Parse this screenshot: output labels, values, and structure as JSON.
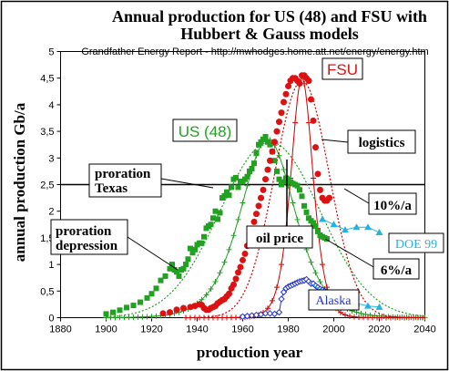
{
  "chart_data": {
    "type": "scatter",
    "title": "Annual production for US (48) and FSU with",
    "subtitle": "Hubbert & Gauss models",
    "source": "Grandfather Energy Report - http://mwhodges.home.att.net/energy/energy.htm",
    "xlabel": "production year",
    "ylabel": "annual production Gb/a",
    "xlim": [
      1880,
      2040
    ],
    "ylim": [
      0,
      5
    ],
    "x_ticks": [
      "1880",
      "1900",
      "1920",
      "1940",
      "1960",
      "1980",
      "2000",
      "2020",
      "2040"
    ],
    "y_ticks": [
      "0",
      "0,5",
      "1",
      "1,5",
      "2",
      "2,5",
      "3",
      "3,5",
      "4",
      "4,5",
      "5"
    ],
    "grid": false,
    "reference_line": 2.5,
    "colors": {
      "us": "#22a022",
      "us_model": "#22a022",
      "fsu": "#dd1111",
      "fsu_model": "#cc0000",
      "alaska": "#2233cc",
      "doe": "#22b4e0",
      "frame": "#000000"
    },
    "series": [
      {
        "name": "US (48)",
        "marker": "square",
        "points": [
          [
            1900,
            0.07
          ],
          [
            1903,
            0.1
          ],
          [
            1906,
            0.14
          ],
          [
            1909,
            0.19
          ],
          [
            1912,
            0.23
          ],
          [
            1915,
            0.29
          ],
          [
            1918,
            0.37
          ],
          [
            1920,
            0.45
          ],
          [
            1922,
            0.55
          ],
          [
            1924,
            0.7
          ],
          [
            1926,
            0.78
          ],
          [
            1928,
            0.92
          ],
          [
            1929,
            1.0
          ],
          [
            1930,
            0.9
          ],
          [
            1931,
            0.86
          ],
          [
            1932,
            0.78
          ],
          [
            1933,
            0.9
          ],
          [
            1934,
            0.92
          ],
          [
            1935,
            1.0
          ],
          [
            1936,
            1.1
          ],
          [
            1937,
            1.3
          ],
          [
            1938,
            1.22
          ],
          [
            1939,
            1.28
          ],
          [
            1940,
            1.37
          ],
          [
            1941,
            1.4
          ],
          [
            1942,
            1.4
          ],
          [
            1943,
            1.52
          ],
          [
            1944,
            1.68
          ],
          [
            1945,
            1.72
          ],
          [
            1946,
            1.75
          ],
          [
            1947,
            1.87
          ],
          [
            1948,
            2.0
          ],
          [
            1949,
            1.85
          ],
          [
            1950,
            1.97
          ],
          [
            1951,
            2.25
          ],
          [
            1952,
            2.29
          ],
          [
            1953,
            2.36
          ],
          [
            1954,
            2.3
          ],
          [
            1955,
            2.45
          ],
          [
            1956,
            2.6
          ],
          [
            1957,
            2.63
          ],
          [
            1958,
            2.45
          ],
          [
            1959,
            2.56
          ],
          [
            1960,
            2.55
          ],
          [
            1961,
            2.6
          ],
          [
            1962,
            2.65
          ],
          [
            1963,
            2.75
          ],
          [
            1964,
            2.8
          ],
          [
            1965,
            2.9
          ],
          [
            1966,
            3.1
          ],
          [
            1967,
            3.25
          ],
          [
            1968,
            3.3
          ],
          [
            1969,
            3.35
          ],
          [
            1970,
            3.4
          ],
          [
            1971,
            3.3
          ],
          [
            1972,
            3.25
          ],
          [
            1973,
            3.12
          ],
          [
            1974,
            2.95
          ],
          [
            1975,
            2.75
          ],
          [
            1976,
            2.6
          ],
          [
            1977,
            2.5
          ],
          [
            1978,
            2.55
          ],
          [
            1979,
            2.62
          ],
          [
            1980,
            2.6
          ],
          [
            1981,
            2.55
          ],
          [
            1982,
            2.52
          ],
          [
            1983,
            2.5
          ],
          [
            1984,
            2.48
          ],
          [
            1985,
            2.4
          ],
          [
            1986,
            2.28
          ],
          [
            1987,
            2.1
          ],
          [
            1988,
            1.98
          ],
          [
            1989,
            1.87
          ],
          [
            1990,
            1.82
          ],
          [
            1991,
            1.78
          ],
          [
            1992,
            1.72
          ],
          [
            1993,
            1.62
          ],
          [
            1994,
            1.55
          ],
          [
            1995,
            1.52
          ],
          [
            1996,
            1.5
          ],
          [
            1997,
            1.48
          ]
        ]
      },
      {
        "name": "FSU",
        "marker": "circle",
        "points": [
          [
            1925,
            0.08
          ],
          [
            1928,
            0.1
          ],
          [
            1931,
            0.15
          ],
          [
            1934,
            0.18
          ],
          [
            1937,
            0.2
          ],
          [
            1939,
            0.22
          ],
          [
            1941,
            0.25
          ],
          [
            1942,
            0.24
          ],
          [
            1943,
            0.18
          ],
          [
            1944,
            0.15
          ],
          [
            1945,
            0.15
          ],
          [
            1946,
            0.18
          ],
          [
            1947,
            0.2
          ],
          [
            1948,
            0.22
          ],
          [
            1949,
            0.27
          ],
          [
            1950,
            0.3
          ],
          [
            1951,
            0.33
          ],
          [
            1952,
            0.35
          ],
          [
            1953,
            0.4
          ],
          [
            1954,
            0.45
          ],
          [
            1955,
            0.55
          ],
          [
            1956,
            0.62
          ],
          [
            1957,
            0.73
          ],
          [
            1958,
            0.85
          ],
          [
            1959,
            0.95
          ],
          [
            1960,
            1.08
          ],
          [
            1961,
            1.2
          ],
          [
            1962,
            1.35
          ],
          [
            1963,
            1.5
          ],
          [
            1964,
            1.65
          ],
          [
            1965,
            1.8
          ],
          [
            1966,
            1.95
          ],
          [
            1967,
            2.1
          ],
          [
            1968,
            2.25
          ],
          [
            1969,
            2.4
          ],
          [
            1970,
            2.6
          ],
          [
            1971,
            2.78
          ],
          [
            1972,
            2.95
          ],
          [
            1973,
            3.12
          ],
          [
            1974,
            3.3
          ],
          [
            1975,
            3.5
          ],
          [
            1976,
            3.68
          ],
          [
            1977,
            3.85
          ],
          [
            1978,
            4.05
          ],
          [
            1979,
            4.2
          ],
          [
            1980,
            4.35
          ],
          [
            1981,
            4.45
          ],
          [
            1982,
            4.5
          ],
          [
            1983,
            4.5
          ],
          [
            1984,
            4.45
          ],
          [
            1985,
            4.4
          ],
          [
            1986,
            4.55
          ],
          [
            1987,
            4.55
          ],
          [
            1988,
            4.5
          ],
          [
            1989,
            4.45
          ],
          [
            1990,
            4.1
          ],
          [
            1991,
            3.7
          ],
          [
            1992,
            3.2
          ],
          [
            1993,
            2.7
          ],
          [
            1994,
            2.4
          ],
          [
            1995,
            2.25
          ],
          [
            1996,
            2.2
          ],
          [
            1997,
            2.2
          ],
          [
            1998,
            2.25
          ]
        ]
      },
      {
        "name": "Alaska",
        "marker": "diamond",
        "points": [
          [
            1960,
            0.02
          ],
          [
            1962,
            0.03
          ],
          [
            1964,
            0.04
          ],
          [
            1966,
            0.05
          ],
          [
            1968,
            0.06
          ],
          [
            1970,
            0.08
          ],
          [
            1972,
            0.08
          ],
          [
            1974,
            0.07
          ],
          [
            1976,
            0.1
          ],
          [
            1977,
            0.35
          ],
          [
            1978,
            0.48
          ],
          [
            1979,
            0.55
          ],
          [
            1980,
            0.58
          ],
          [
            1981,
            0.6
          ],
          [
            1982,
            0.62
          ],
          [
            1983,
            0.64
          ],
          [
            1984,
            0.66
          ],
          [
            1985,
            0.68
          ],
          [
            1986,
            0.69
          ],
          [
            1987,
            0.7
          ],
          [
            1988,
            0.72
          ],
          [
            1989,
            0.68
          ],
          [
            1990,
            0.64
          ],
          [
            1991,
            0.64
          ],
          [
            1992,
            0.6
          ],
          [
            1993,
            0.57
          ],
          [
            1994,
            0.54
          ],
          [
            1995,
            0.52
          ],
          [
            1996,
            0.5
          ]
        ]
      },
      {
        "name": "DOE 99",
        "marker": "triangle",
        "points": [
          [
            1995,
            1.85
          ],
          [
            2000,
            1.75
          ],
          [
            2005,
            1.65
          ],
          [
            2010,
            1.7
          ],
          [
            2015,
            1.7
          ],
          [
            2020,
            1.6
          ],
          [
            2000,
            0.35
          ],
          [
            2005,
            0.3
          ],
          [
            2010,
            0.27
          ],
          [
            2015,
            0.22
          ],
          [
            2020,
            0.2
          ]
        ]
      }
    ],
    "models": [
      {
        "name": "US (48) logistic",
        "series": "US (48)",
        "kind": "logistic",
        "peak_year": 1971,
        "peak": 3.35,
        "width": 16,
        "marker": "plus",
        "from": 1900,
        "to": 2040
      },
      {
        "name": "US (48) gauss",
        "series": "US (48)",
        "kind": "gauss",
        "peak_year": 1972,
        "peak": 3.3,
        "sigma": 22,
        "from": 1900,
        "to": 2040
      },
      {
        "name": "FSU logistic",
        "series": "FSU",
        "kind": "logistic",
        "peak_year": 1986,
        "peak": 4.5,
        "width": 6.5,
        "marker": "plus",
        "from": 1935,
        "to": 2040
      },
      {
        "name": "FSU gauss",
        "series": "FSU",
        "kind": "gauss",
        "peak_year": 1986,
        "peak": 4.45,
        "sigma": 12,
        "from": 1935,
        "to": 2040
      }
    ],
    "annotations": {
      "us48": "US (48)",
      "fsu": "FSU",
      "logistics": "logistics",
      "proration_texas_1": "proration",
      "proration_texas_2": "Texas",
      "proration_depression_1": "proration",
      "proration_depression_2": "depression",
      "oil_price": "oil price",
      "ten_pct": "10%/a",
      "six_pct": "6%/a",
      "doe99": "DOE 99",
      "alaska": "Alaska"
    }
  }
}
